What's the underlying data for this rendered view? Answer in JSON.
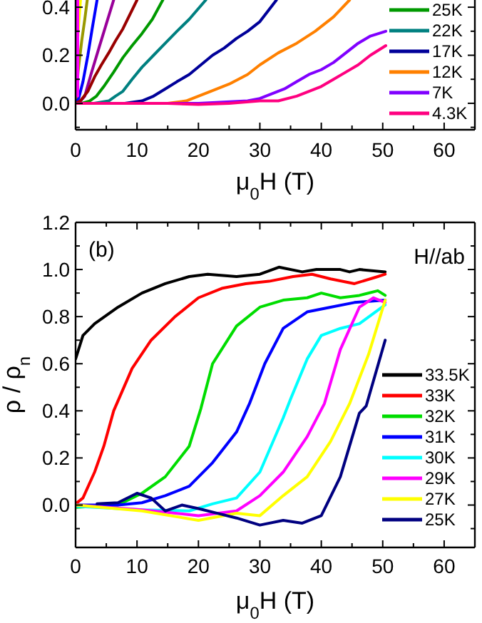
{
  "chart_data": [
    {
      "type": "line",
      "xlabel": "μ$_{0}$H (T)",
      "xlim": [
        0,
        65
      ],
      "ylim": [
        -0.11,
        0.43
      ],
      "xticks": [
        0,
        {
          "value": 5,
          "label": null
        },
        10,
        {
          "value": 15,
          "label": null
        },
        20,
        {
          "value": 25,
          "label": null
        },
        30,
        {
          "value": 35,
          "label": null
        },
        40,
        {
          "value": 45,
          "label": null
        },
        50,
        {
          "value": 55,
          "label": null
        },
        60
      ],
      "yticks": [
        {
          "value": -0.1,
          "label": null
        },
        {
          "value": 0,
          "label": "0.0"
        },
        {
          "value": 0.1,
          "label": null
        },
        0.2,
        {
          "value": 0.3,
          "label": null
        },
        0.4
      ],
      "legend": "right",
      "line_style": "solid",
      "marker": "none",
      "grid": false,
      "series": [
        {
          "color": "#ffff00",
          "x": [
            0.15,
            0.5,
            0.8
          ],
          "values": [
            0.19,
            0.33,
            0.43
          ]
        },
        {
          "color": "#999900",
          "x": [
            0,
            0.4,
            1,
            1.5,
            1.9
          ],
          "values": [
            0,
            0.13,
            0.26,
            0.35,
            0.43
          ]
        },
        {
          "color": "#0000ff",
          "x": [
            0,
            0.5,
            1.2,
            2,
            2.7,
            3.5
          ],
          "values": [
            0,
            0.02,
            0.09,
            0.2,
            0.31,
            0.43
          ]
        },
        {
          "color": "#990099",
          "x": [
            0,
            0.8,
            1.5,
            2.5,
            3.8,
            5,
            6.2
          ],
          "values": [
            0,
            0.01,
            0.03,
            0.12,
            0.23,
            0.33,
            0.43
          ]
        },
        {
          "color": "#990000",
          "x": [
            0,
            0.8,
            2,
            3.1,
            4.2,
            5.4,
            6.5,
            7.7,
            10
          ],
          "values": [
            0,
            0.01,
            0.05,
            0.11,
            0.16,
            0.21,
            0.26,
            0.31,
            0.43
          ]
        },
        {
          "name": "25K",
          "color": "#009900",
          "x": [
            0,
            1,
            2.3,
            3.4,
            4.6,
            6.2,
            7.7,
            9.2,
            10.8,
            12.5,
            14.2
          ],
          "values": [
            0,
            0,
            0.01,
            0.03,
            0.07,
            0.13,
            0.19,
            0.24,
            0.29,
            0.35,
            0.43
          ]
        },
        {
          "name": "22K",
          "color": "#008080",
          "x": [
            0,
            3,
            5.4,
            6.5,
            7.7,
            9.2,
            10.8,
            12.7,
            14.6,
            16.5,
            18.5,
            21.2
          ],
          "values": [
            0,
            0,
            0.01,
            0.03,
            0.05,
            0.1,
            0.15,
            0.2,
            0.25,
            0.3,
            0.35,
            0.43
          ]
        },
        {
          "name": "17K",
          "color": "#000099",
          "x": [
            0,
            5,
            8,
            10.8,
            12.7,
            14.6,
            16.5,
            18.5,
            20.4,
            22.3,
            24.2,
            26.2,
            28,
            30,
            32.7
          ],
          "values": [
            0,
            0,
            0,
            0.01,
            0.03,
            0.06,
            0.09,
            0.12,
            0.16,
            0.2,
            0.23,
            0.27,
            0.3,
            0.34,
            0.43
          ]
        },
        {
          "name": "12K",
          "color": "#ff8000",
          "x": [
            0,
            10,
            15,
            18,
            20,
            22,
            25,
            28,
            30,
            33,
            36,
            39,
            42,
            44.6
          ],
          "values": [
            0,
            0,
            0,
            0.01,
            0.03,
            0.05,
            0.08,
            0.12,
            0.16,
            0.21,
            0.25,
            0.3,
            0.36,
            0.43
          ]
        },
        {
          "name": "7K",
          "color": "#8000ff",
          "x": [
            0,
            10,
            20,
            28,
            30,
            32,
            34,
            36,
            38,
            40,
            42,
            44,
            46,
            48,
            50.5
          ],
          "values": [
            0,
            0,
            0,
            0.01,
            0.02,
            0.04,
            0.06,
            0.09,
            0.12,
            0.14,
            0.17,
            0.21,
            0.25,
            0.28,
            0.3
          ]
        },
        {
          "name": "4.3K",
          "color": "#ff0080",
          "x": [
            0,
            5,
            10,
            15,
            20,
            25,
            30,
            33,
            36,
            38,
            40,
            42,
            44,
            46,
            48,
            50.5
          ],
          "values": [
            0,
            0,
            0,
            0,
            -0.005,
            0,
            0.01,
            0.01,
            0.03,
            0.05,
            0.07,
            0.1,
            0.13,
            0.16,
            0.2,
            0.24
          ]
        },
        {
          "color": "#ff00ff",
          "x": [
            0.35,
            0.35,
            0.35
          ],
          "values": [
            0.03,
            0.2,
            0.43
          ]
        }
      ]
    },
    {
      "type": "line",
      "xlabel": "μ$_{0}$H (T)",
      "ylabel": "ρ / ρ$_{n}$",
      "xlim": [
        0,
        65
      ],
      "ylim": [
        -0.18,
        1.2
      ],
      "xticks": [
        0,
        {
          "value": 5,
          "label": null
        },
        10,
        {
          "value": 15,
          "label": null
        },
        20,
        {
          "value": 25,
          "label": null
        },
        30,
        {
          "value": 35,
          "label": null
        },
        40,
        {
          "value": 45,
          "label": null
        },
        50,
        {
          "value": 55,
          "label": null
        },
        60
      ],
      "yticks": [
        {
          "value": -0.1,
          "label": null
        },
        {
          "value": 0,
          "label": "0.0"
        },
        {
          "value": 0.1,
          "label": null
        },
        0.2,
        {
          "value": 0.3,
          "label": null
        },
        0.4,
        {
          "value": 0.5,
          "label": null
        },
        0.6,
        {
          "value": 0.7,
          "label": null
        },
        0.8,
        {
          "value": 0.9,
          "label": null
        },
        {
          "value": 1,
          "label": "1.0"
        },
        {
          "value": 1.1,
          "label": null
        },
        1.2
      ],
      "legend": "right",
      "line_style": "solid",
      "marker": "none",
      "grid": false,
      "annotations": [
        "(b)",
        "H//ab"
      ],
      "series": [
        {
          "name": "33.5K",
          "color": "#000000",
          "x": [
            0,
            1.2,
            3.1,
            6.9,
            10.8,
            14.6,
            18.5,
            21.5,
            26.2,
            30,
            33.1,
            36.9,
            39.2,
            43.1,
            44.6,
            46.2,
            50.4
          ],
          "values": [
            0.62,
            0.72,
            0.77,
            0.84,
            0.9,
            0.94,
            0.97,
            0.98,
            0.97,
            0.98,
            1.01,
            0.99,
            1.0,
            1.0,
            0.99,
            1.0,
            0.99
          ]
        },
        {
          "name": "33K",
          "color": "#ff0000",
          "x": [
            0,
            1.2,
            3.1,
            4.6,
            6.2,
            9.2,
            12.3,
            16.2,
            20,
            23.8,
            27.7,
            31.5,
            35.4,
            38.5,
            41.5,
            45.4,
            49.2,
            50.4
          ],
          "values": [
            0.005,
            0.03,
            0.14,
            0.25,
            0.4,
            0.58,
            0.7,
            0.8,
            0.88,
            0.92,
            0.94,
            0.95,
            0.97,
            0.98,
            0.96,
            0.94,
            0.97,
            0.98
          ]
        },
        {
          "name": "32K",
          "color": "#00dd00",
          "x": [
            0,
            6.9,
            10.8,
            14.6,
            18.5,
            20.4,
            22.3,
            26.2,
            30,
            33.8,
            37.7,
            40,
            43.1,
            46.2,
            49.2,
            50.4
          ],
          "values": [
            -0.01,
            0,
            0.05,
            0.12,
            0.25,
            0.41,
            0.6,
            0.76,
            0.84,
            0.87,
            0.88,
            0.9,
            0.88,
            0.89,
            0.91,
            0.89
          ]
        },
        {
          "name": "31K",
          "color": "#0000ff",
          "x": [
            0,
            6.9,
            10.8,
            14.6,
            18.5,
            22.3,
            26.2,
            28.3,
            30.8,
            33.8,
            37.7,
            41.5,
            45.4,
            50.4
          ],
          "values": [
            0,
            0,
            0.01,
            0.04,
            0.08,
            0.18,
            0.31,
            0.43,
            0.6,
            0.75,
            0.82,
            0.84,
            0.86,
            0.87
          ]
        },
        {
          "name": "30K",
          "color": "#00ffff",
          "x": [
            0,
            10.8,
            18.5,
            22.3,
            26.2,
            30,
            33.8,
            35,
            37.7,
            40,
            43.1,
            46.2,
            50.4
          ],
          "values": [
            -0.005,
            -0.02,
            -0.025,
            0.005,
            0.03,
            0.14,
            0.37,
            0.45,
            0.62,
            0.72,
            0.75,
            0.77,
            0.85
          ]
        },
        {
          "name": "29K",
          "color": "#ff00ff",
          "x": [
            0,
            10.8,
            20,
            26.2,
            30,
            33.8,
            37.7,
            40.5,
            43.1,
            46.2,
            48.5,
            50.4
          ],
          "values": [
            0,
            -0.02,
            -0.045,
            -0.025,
            0.04,
            0.14,
            0.29,
            0.43,
            0.66,
            0.84,
            0.88,
            0.86
          ]
        },
        {
          "name": "27K",
          "color": "#ffff00",
          "x": [
            0,
            10.8,
            20,
            26.2,
            30,
            33.8,
            37.7,
            41.5,
            44.6,
            47.7,
            50.4
          ],
          "values": [
            0,
            -0.025,
            -0.065,
            -0.035,
            -0.045,
            0.04,
            0.12,
            0.27,
            0.43,
            0.64,
            0.87
          ]
        },
        {
          "name": "25K",
          "color": "#000080",
          "x": [
            3.5,
            6.9,
            10,
            12.3,
            14.6,
            17.3,
            20,
            23.1,
            26.2,
            30,
            33.8,
            36.9,
            40,
            43.1,
            46.2,
            47.3,
            50.4
          ],
          "values": [
            0.005,
            0.01,
            0.05,
            0.03,
            -0.025,
            0,
            -0.015,
            -0.035,
            -0.055,
            -0.085,
            -0.065,
            -0.077,
            -0.045,
            0.12,
            0.39,
            0.42,
            0.7
          ]
        }
      ]
    }
  ]
}
